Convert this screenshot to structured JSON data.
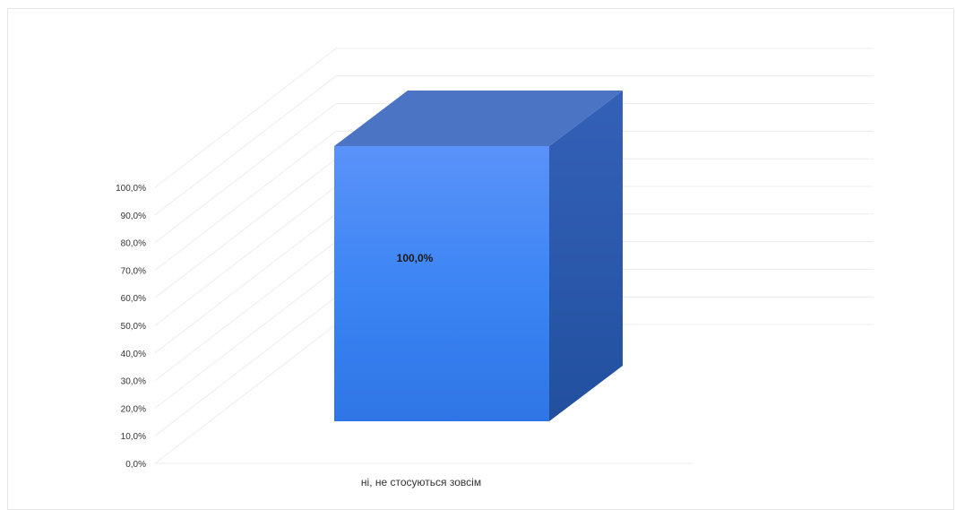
{
  "chart_data": {
    "type": "bar",
    "categories": [
      "ні, не стосуються зовсім"
    ],
    "values": [
      100.0
    ],
    "data_labels": [
      "100,0%"
    ],
    "ylim": [
      0,
      100
    ],
    "y_ticks": [
      "0,0%",
      "10,0%",
      "20,0%",
      "30,0%",
      "40,0%",
      "50,0%",
      "60,0%",
      "70,0%",
      "80,0%",
      "90,0%",
      "100,0%"
    ],
    "three_d": true,
    "grid": true,
    "legend": "none",
    "colors": {
      "front": "#3f86f4",
      "top": "#4b75c4",
      "side": "#2a5bb8",
      "grid": "#ececec",
      "text": "#333333"
    }
  }
}
